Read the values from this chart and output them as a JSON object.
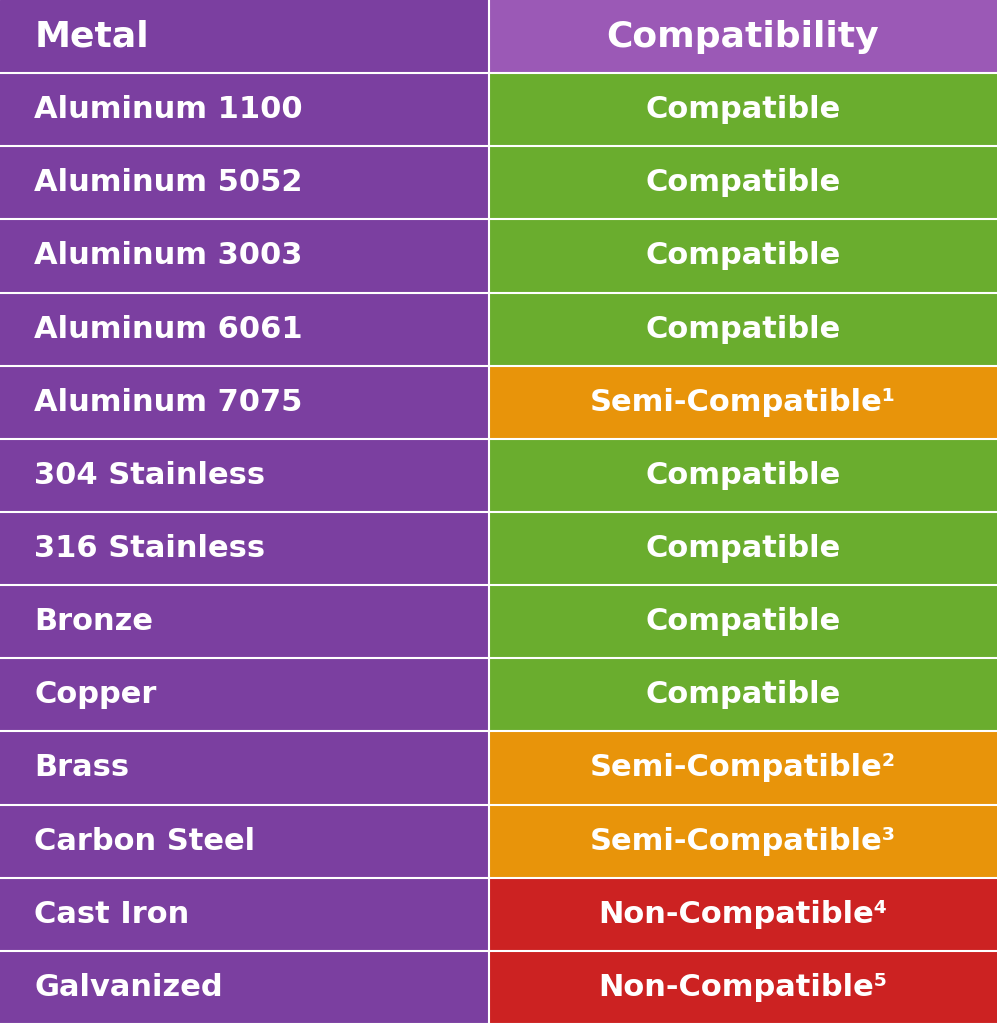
{
  "header": [
    "Metal",
    "Compatibility"
  ],
  "rows": [
    [
      "Aluminum 1100",
      "Compatible",
      "green"
    ],
    [
      "Aluminum 5052",
      "Compatible",
      "green"
    ],
    [
      "Aluminum 3003",
      "Compatible",
      "green"
    ],
    [
      "Aluminum 6061",
      "Compatible",
      "green"
    ],
    [
      "Aluminum 7075",
      "Semi-Compatible¹",
      "orange"
    ],
    [
      "304 Stainless",
      "Compatible",
      "green"
    ],
    [
      "316 Stainless",
      "Compatible",
      "green"
    ],
    [
      "Bronze",
      "Compatible",
      "green"
    ],
    [
      "Copper",
      "Compatible",
      "green"
    ],
    [
      "Brass",
      "Semi-Compatible²",
      "orange"
    ],
    [
      "Carbon Steel",
      "Semi-Compatible³",
      "orange"
    ],
    [
      "Cast Iron",
      "Non-Compatible⁴",
      "red"
    ],
    [
      "Galvanized",
      "Non-Compatible⁵",
      "red"
    ]
  ],
  "header_bg": "#7B3FA0",
  "header_right_bg": "#9B59B6",
  "metal_col_bg": "#7B3FA0",
  "green_color": "#6AAD2E",
  "orange_color": "#E8940A",
  "red_color": "#CC2222",
  "text_color": "#FFFFFF",
  "divider_color": "#FFFFFF",
  "fig_bg": "#FFFFFF",
  "col_split": 0.49,
  "font_size_header": 26,
  "font_size_row": 22
}
